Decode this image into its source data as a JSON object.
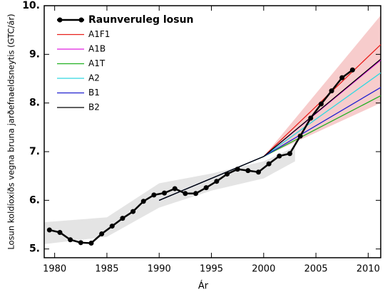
{
  "chart_data": {
    "type": "line",
    "ylabel": "Losun koldíoxíðs vegna bruna jarðefnaeldsneytis (GTC/ár)",
    "xlabel": "Ár",
    "xlim": [
      1979,
      2011.2
    ],
    "ylim": [
      4.82,
      10
    ],
    "xticks": [
      1980,
      1985,
      1990,
      1995,
      2000,
      2005,
      2010
    ],
    "yticks": [
      {
        "value": 5,
        "label": "5."
      },
      {
        "value": 6,
        "label": "6."
      },
      {
        "value": 7,
        "label": "7."
      },
      {
        "value": 8,
        "label": "8."
      },
      {
        "value": 9,
        "label": "9."
      },
      {
        "value": 10,
        "label": "10."
      }
    ],
    "legend": "upper left",
    "bands": [
      {
        "color": "#f4b6b6",
        "x": [
          2000,
          2011.2
        ],
        "lower": [
          6.9,
          8.0
        ],
        "upper": [
          6.9,
          9.8
        ]
      },
      {
        "color": "#d8d8d8",
        "x": [
          1979,
          1985,
          1990,
          1995,
          2000,
          2003
        ],
        "lower": [
          5.1,
          5.25,
          5.85,
          6.2,
          6.45,
          6.8
        ],
        "upper": [
          5.55,
          5.65,
          6.35,
          6.55,
          6.8,
          7.1
        ]
      }
    ],
    "series": [
      {
        "name": "Raunveruleg losun",
        "color": "#000000",
        "markers": true,
        "x": [
          1979.5,
          1980.5,
          1981.5,
          1982.5,
          1983.5,
          1984.5,
          1985.5,
          1986.5,
          1987.5,
          1988.5,
          1989.5,
          1990.5,
          1991.5,
          1992.5,
          1993.5,
          1994.5,
          1995.5,
          1996.5,
          1997.5,
          1998.5,
          1999.5,
          2000.5,
          2001.5,
          2002.5,
          2003.5,
          2004.5,
          2005.5,
          2006.5,
          2007.5,
          2008.5
        ],
        "values": [
          5.39,
          5.34,
          5.19,
          5.13,
          5.12,
          5.31,
          5.47,
          5.63,
          5.77,
          5.98,
          6.11,
          6.15,
          6.24,
          6.14,
          6.14,
          6.26,
          6.39,
          6.54,
          6.64,
          6.61,
          6.58,
          6.75,
          6.91,
          6.96,
          7.32,
          7.69,
          7.98,
          8.25,
          8.52,
          8.68
        ]
      },
      {
        "name": "A1F1",
        "color": "#e8201c",
        "x": [
          1990,
          2000,
          2011.2
        ],
        "values": [
          6.0,
          6.9,
          9.2
        ]
      },
      {
        "name": "A1B",
        "color": "#e020e0",
        "x": [
          1990,
          2000,
          2011.2
        ],
        "values": [
          6.0,
          6.9,
          8.88
        ]
      },
      {
        "name": "A1T",
        "color": "#20b020",
        "x": [
          1990,
          2000,
          2011.2
        ],
        "values": [
          6.0,
          6.9,
          8.15
        ]
      },
      {
        "name": "A2",
        "color": "#30d8e0",
        "x": [
          1990,
          2000,
          2011.2
        ],
        "values": [
          6.0,
          6.9,
          8.62
        ]
      },
      {
        "name": "B1",
        "color": "#2020d0",
        "x": [
          1990,
          2000,
          2011.2
        ],
        "values": [
          6.0,
          6.9,
          8.32
        ]
      },
      {
        "name": "B2",
        "color": "#000000",
        "x": [
          1990,
          2000,
          2011.2
        ],
        "values": [
          6.0,
          6.9,
          8.9
        ]
      }
    ]
  }
}
